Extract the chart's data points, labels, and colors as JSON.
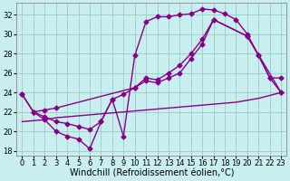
{
  "xlabel": "Windchill (Refroidissement éolien,°C)",
  "bg_color": "#c8eef0",
  "grid_color": "#a0d0cc",
  "line_color": "#880088",
  "xlim": [
    -0.5,
    23.5
  ],
  "ylim": [
    17.5,
    33.2
  ],
  "xticks": [
    0,
    1,
    2,
    3,
    4,
    5,
    6,
    7,
    8,
    9,
    10,
    11,
    12,
    13,
    14,
    15,
    16,
    17,
    18,
    19,
    20,
    21,
    22,
    23
  ],
  "yticks": [
    18,
    20,
    22,
    24,
    26,
    28,
    30,
    32
  ],
  "series1_x": [
    0,
    1,
    2,
    3,
    4,
    5,
    6,
    7,
    8,
    9,
    10,
    11,
    12,
    13,
    14,
    15,
    16,
    17,
    18,
    19,
    20,
    21,
    22,
    23
  ],
  "series1_y": [
    23.8,
    22.0,
    21.2,
    20.0,
    19.5,
    19.2,
    18.2,
    21.0,
    23.3,
    19.5,
    27.8,
    31.3,
    31.8,
    31.8,
    32.0,
    32.1,
    32.6,
    32.5,
    32.1,
    31.5,
    30.0,
    27.8,
    25.5,
    24.0
  ],
  "series2_x": [
    0,
    1,
    2,
    3,
    4,
    5,
    6,
    7,
    8,
    9,
    10,
    11,
    12,
    13,
    14,
    15,
    16,
    17,
    20,
    23
  ],
  "series2_y": [
    23.8,
    22.0,
    21.5,
    21.0,
    20.8,
    20.5,
    20.2,
    21.0,
    23.3,
    23.8,
    24.5,
    25.2,
    25.0,
    25.5,
    26.0,
    27.5,
    29.0,
    31.5,
    29.8,
    24.0
  ],
  "series3_x": [
    0,
    1,
    2,
    3,
    4,
    5,
    6,
    7,
    8,
    9,
    10,
    11,
    12,
    13,
    14,
    15,
    16,
    17,
    18,
    19,
    20,
    21,
    22,
    23
  ],
  "series3_y": [
    21.0,
    21.1,
    21.2,
    21.4,
    21.5,
    21.6,
    21.7,
    21.8,
    21.9,
    22.0,
    22.1,
    22.2,
    22.3,
    22.4,
    22.5,
    22.6,
    22.7,
    22.8,
    22.9,
    23.0,
    23.2,
    23.4,
    23.7,
    24.0
  ],
  "series4_x": [
    1,
    2,
    3,
    10,
    11,
    12,
    13,
    14,
    15,
    16,
    17,
    20,
    21,
    22,
    23
  ],
  "series4_y": [
    22.0,
    22.2,
    22.4,
    24.5,
    25.5,
    25.3,
    26.0,
    26.8,
    28.0,
    29.5,
    31.5,
    29.8,
    27.8,
    25.5,
    25.5
  ],
  "marker": "D",
  "markersize": 2.5,
  "linewidth": 1.0,
  "xlabel_fontsize": 7,
  "tick_fontsize": 6
}
